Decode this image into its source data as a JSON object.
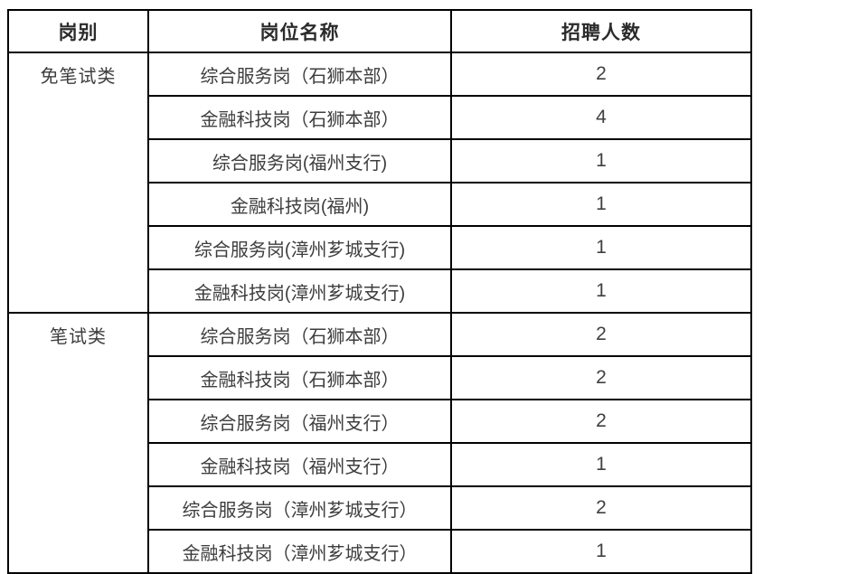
{
  "table": {
    "columns": [
      "岗别",
      "岗位名称",
      "招聘人数"
    ],
    "groups": [
      {
        "category": "免笔试类",
        "rows": [
          {
            "position": "综合服务岗（石狮本部）",
            "count": "2"
          },
          {
            "position": "金融科技岗（石狮本部）",
            "count": "4"
          },
          {
            "position": "综合服务岗(福州支行)",
            "count": "1"
          },
          {
            "position": "金融科技岗(福州)",
            "count": "1"
          },
          {
            "position": "综合服务岗(漳州芗城支行)",
            "count": "1"
          },
          {
            "position": "金融科技岗(漳州芗城支行)",
            "count": "1"
          }
        ]
      },
      {
        "category": "笔试类",
        "rows": [
          {
            "position": "综合服务岗（石狮本部）",
            "count": "2"
          },
          {
            "position": "金融科技岗（石狮本部）",
            "count": "2"
          },
          {
            "position": "综合服务岗（福州支行）",
            "count": "2"
          },
          {
            "position": "金融科技岗（福州支行）",
            "count": "1"
          },
          {
            "position": "综合服务岗（漳州芗城支行）",
            "count": "2"
          },
          {
            "position": "金融科技岗（漳州芗城支行）",
            "count": "1"
          }
        ]
      }
    ],
    "colors": {
      "border": "#000000",
      "body_text": "#3d3d3d",
      "header_text": "#2b2b2b",
      "background": "#ffffff"
    }
  }
}
